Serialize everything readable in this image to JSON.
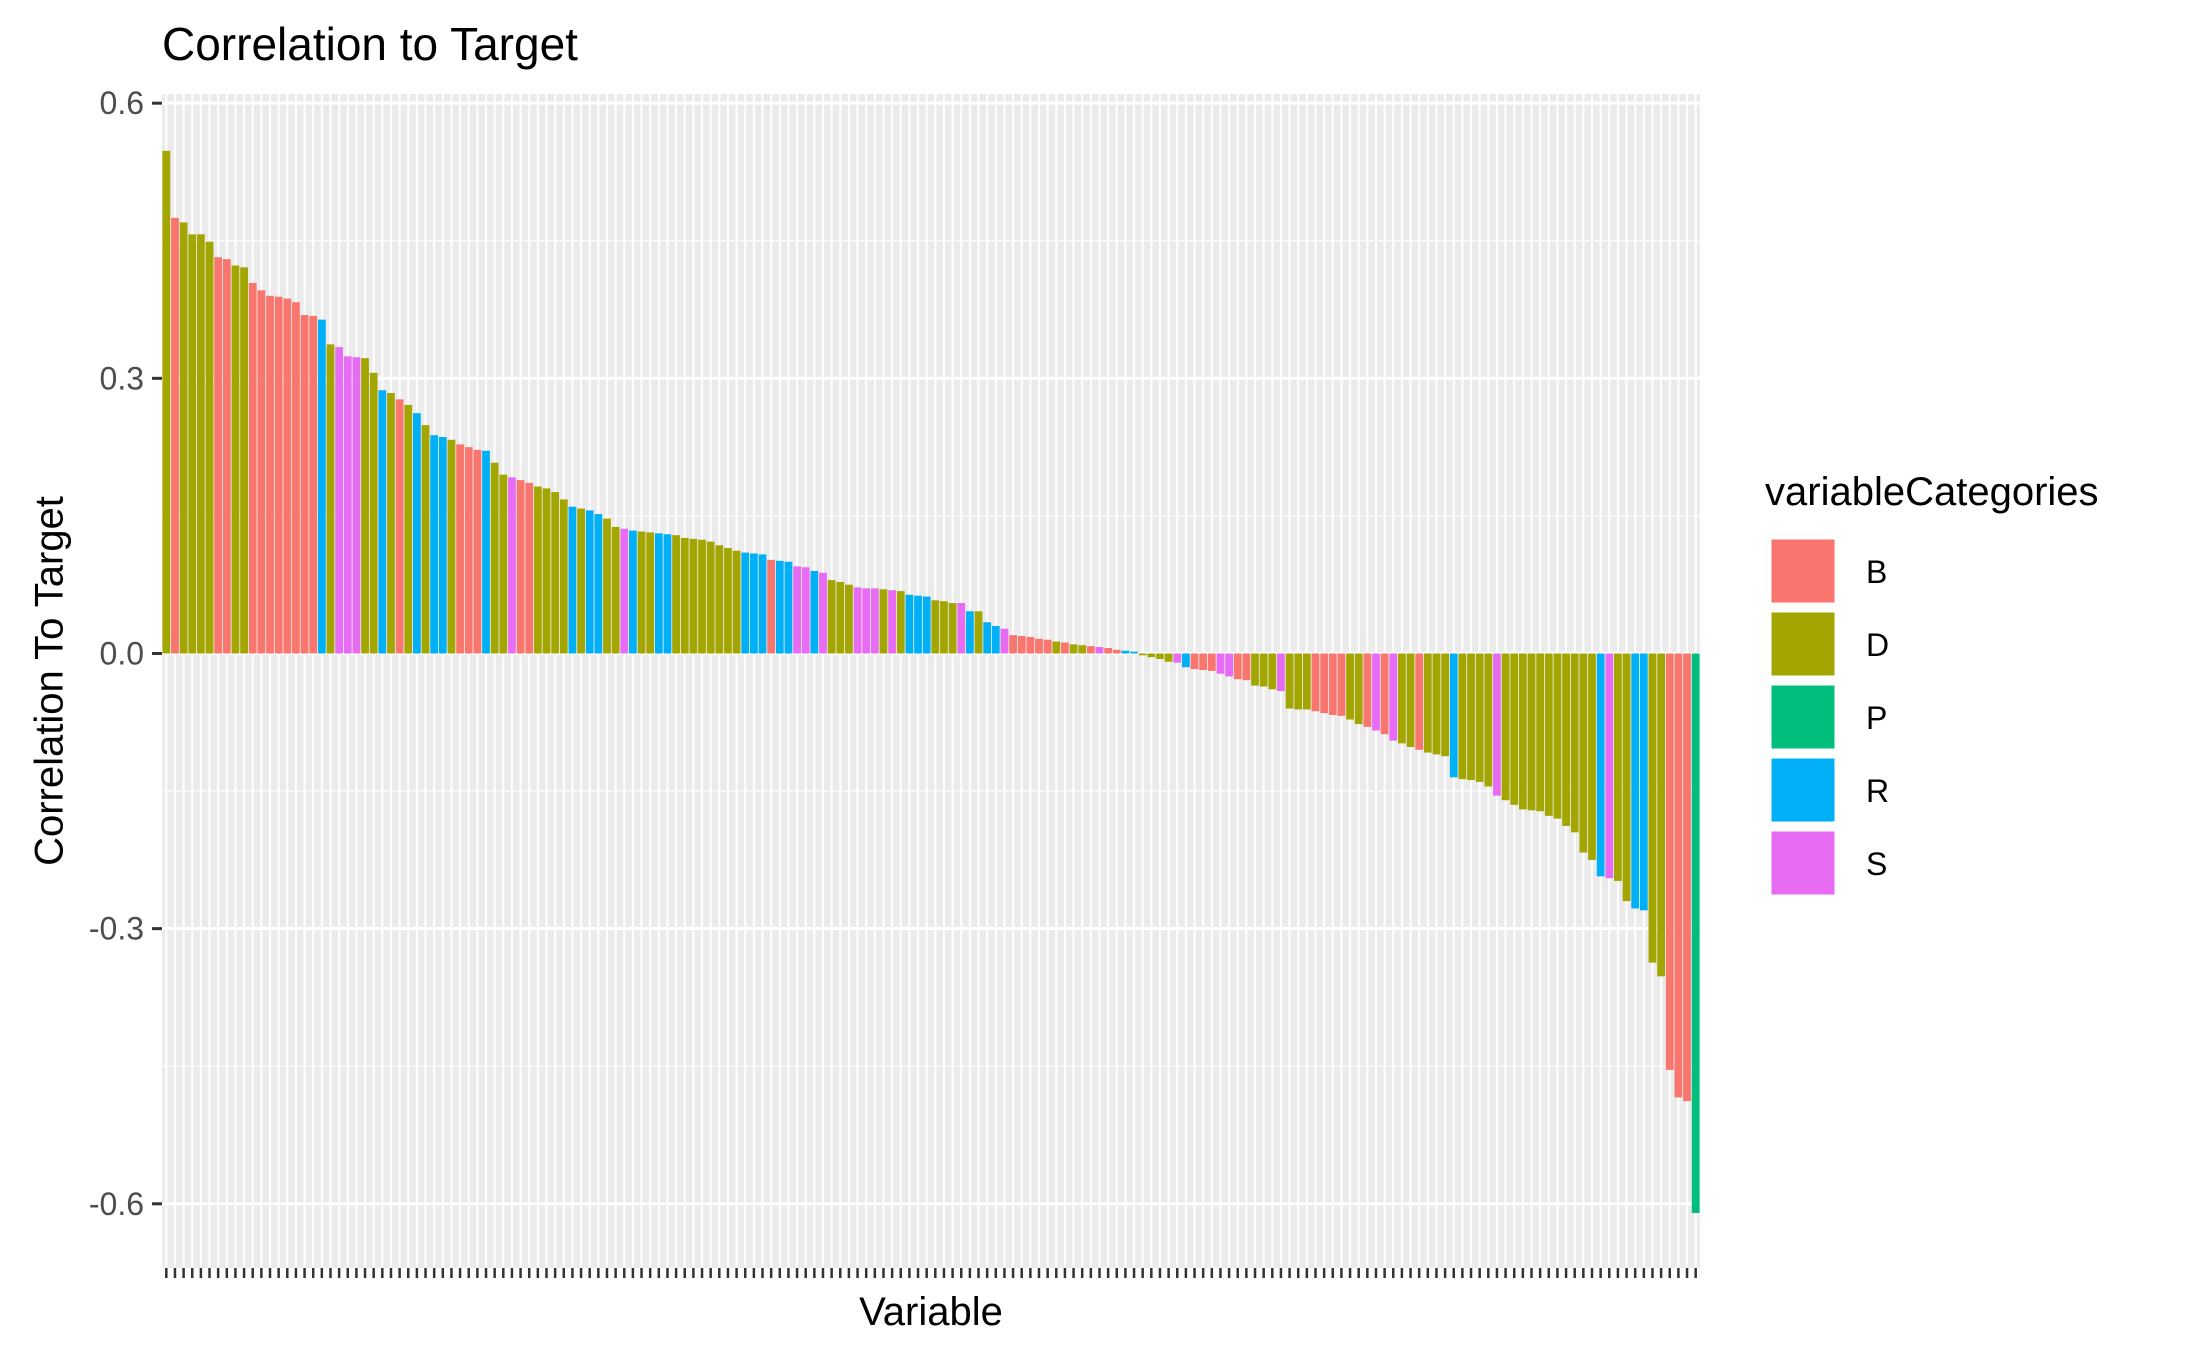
{
  "chart_data": {
    "type": "bar",
    "title": "Correlation to Target",
    "xlabel": "Variable",
    "ylabel": "Correlation To Target",
    "ylim": [
      -0.67,
      0.61
    ],
    "yticks": [
      0.6,
      0.3,
      0.0,
      -0.3,
      -0.6
    ],
    "ytick_labels": [
      "0.6",
      "0.3",
      "0.0",
      "-0.3",
      "-0.6"
    ],
    "grid": true,
    "legend": {
      "title": "variableCategories",
      "position": "right",
      "entries": [
        {
          "key": "B",
          "label": "B",
          "color": "#F8766D"
        },
        {
          "key": "D",
          "label": "D",
          "color": "#A3A500"
        },
        {
          "key": "P",
          "label": "P",
          "color": "#00BF7D"
        },
        {
          "key": "R",
          "label": "R",
          "color": "#00B0F6"
        },
        {
          "key": "S",
          "label": "S",
          "color": "#E76BF3"
        }
      ]
    },
    "bars": [
      {
        "c": "D",
        "v": 0.548
      },
      {
        "c": "B",
        "v": 0.475
      },
      {
        "c": "D",
        "v": 0.47
      },
      {
        "c": "D",
        "v": 0.457
      },
      {
        "c": "D",
        "v": 0.457
      },
      {
        "c": "D",
        "v": 0.449
      },
      {
        "c": "B",
        "v": 0.432
      },
      {
        "c": "B",
        "v": 0.43
      },
      {
        "c": "D",
        "v": 0.423
      },
      {
        "c": "D",
        "v": 0.421
      },
      {
        "c": "B",
        "v": 0.404
      },
      {
        "c": "B",
        "v": 0.396
      },
      {
        "c": "B",
        "v": 0.39
      },
      {
        "c": "B",
        "v": 0.389
      },
      {
        "c": "B",
        "v": 0.387
      },
      {
        "c": "B",
        "v": 0.383
      },
      {
        "c": "B",
        "v": 0.369
      },
      {
        "c": "B",
        "v": 0.368
      },
      {
        "c": "R",
        "v": 0.364
      },
      {
        "c": "D",
        "v": 0.337
      },
      {
        "c": "S",
        "v": 0.334
      },
      {
        "c": "S",
        "v": 0.324
      },
      {
        "c": "S",
        "v": 0.323
      },
      {
        "c": "D",
        "v": 0.322
      },
      {
        "c": "D",
        "v": 0.306
      },
      {
        "c": "R",
        "v": 0.287
      },
      {
        "c": "D",
        "v": 0.284
      },
      {
        "c": "B",
        "v": 0.277
      },
      {
        "c": "D",
        "v": 0.271
      },
      {
        "c": "R",
        "v": 0.262
      },
      {
        "c": "D",
        "v": 0.249
      },
      {
        "c": "R",
        "v": 0.238
      },
      {
        "c": "R",
        "v": 0.236
      },
      {
        "c": "D",
        "v": 0.233
      },
      {
        "c": "B",
        "v": 0.228
      },
      {
        "c": "B",
        "v": 0.225
      },
      {
        "c": "B",
        "v": 0.222
      },
      {
        "c": "R",
        "v": 0.221
      },
      {
        "c": "D",
        "v": 0.208
      },
      {
        "c": "D",
        "v": 0.195
      },
      {
        "c": "S",
        "v": 0.192
      },
      {
        "c": "B",
        "v": 0.189
      },
      {
        "c": "B",
        "v": 0.186
      },
      {
        "c": "D",
        "v": 0.182
      },
      {
        "c": "D",
        "v": 0.18
      },
      {
        "c": "D",
        "v": 0.176
      },
      {
        "c": "D",
        "v": 0.168
      },
      {
        "c": "R",
        "v": 0.16
      },
      {
        "c": "D",
        "v": 0.158
      },
      {
        "c": "R",
        "v": 0.156
      },
      {
        "c": "R",
        "v": 0.152
      },
      {
        "c": "D",
        "v": 0.147
      },
      {
        "c": "D",
        "v": 0.138
      },
      {
        "c": "S",
        "v": 0.136
      },
      {
        "c": "R",
        "v": 0.134
      },
      {
        "c": "D",
        "v": 0.133
      },
      {
        "c": "D",
        "v": 0.132
      },
      {
        "c": "R",
        "v": 0.131
      },
      {
        "c": "R",
        "v": 0.13
      },
      {
        "c": "D",
        "v": 0.129
      },
      {
        "c": "D",
        "v": 0.126
      },
      {
        "c": "D",
        "v": 0.125
      },
      {
        "c": "D",
        "v": 0.124
      },
      {
        "c": "D",
        "v": 0.122
      },
      {
        "c": "D",
        "v": 0.118
      },
      {
        "c": "D",
        "v": 0.115
      },
      {
        "c": "D",
        "v": 0.112
      },
      {
        "c": "R",
        "v": 0.11
      },
      {
        "c": "R",
        "v": 0.109
      },
      {
        "c": "R",
        "v": 0.108
      },
      {
        "c": "B",
        "v": 0.102
      },
      {
        "c": "R",
        "v": 0.101
      },
      {
        "c": "R",
        "v": 0.1
      },
      {
        "c": "S",
        "v": 0.095
      },
      {
        "c": "S",
        "v": 0.094
      },
      {
        "c": "R",
        "v": 0.09
      },
      {
        "c": "S",
        "v": 0.088
      },
      {
        "c": "D",
        "v": 0.08
      },
      {
        "c": "D",
        "v": 0.078
      },
      {
        "c": "D",
        "v": 0.075
      },
      {
        "c": "S",
        "v": 0.072
      },
      {
        "c": "S",
        "v": 0.071
      },
      {
        "c": "S",
        "v": 0.071
      },
      {
        "c": "D",
        "v": 0.07
      },
      {
        "c": "S",
        "v": 0.069
      },
      {
        "c": "D",
        "v": 0.068
      },
      {
        "c": "R",
        "v": 0.064
      },
      {
        "c": "R",
        "v": 0.063
      },
      {
        "c": "R",
        "v": 0.062
      },
      {
        "c": "D",
        "v": 0.058
      },
      {
        "c": "D",
        "v": 0.057
      },
      {
        "c": "D",
        "v": 0.055
      },
      {
        "c": "S",
        "v": 0.055
      },
      {
        "c": "R",
        "v": 0.046
      },
      {
        "c": "D",
        "v": 0.046
      },
      {
        "c": "R",
        "v": 0.034
      },
      {
        "c": "R",
        "v": 0.03
      },
      {
        "c": "S",
        "v": 0.027
      },
      {
        "c": "B",
        "v": 0.02
      },
      {
        "c": "B",
        "v": 0.019
      },
      {
        "c": "B",
        "v": 0.018
      },
      {
        "c": "B",
        "v": 0.016
      },
      {
        "c": "B",
        "v": 0.015
      },
      {
        "c": "D",
        "v": 0.013
      },
      {
        "c": "B",
        "v": 0.012
      },
      {
        "c": "D",
        "v": 0.01
      },
      {
        "c": "D",
        "v": 0.009
      },
      {
        "c": "B",
        "v": 0.008
      },
      {
        "c": "S",
        "v": 0.007
      },
      {
        "c": "B",
        "v": 0.006
      },
      {
        "c": "B",
        "v": 0.004
      },
      {
        "c": "R",
        "v": 0.003
      },
      {
        "c": "R",
        "v": 0.002
      },
      {
        "c": "D",
        "v": -0.002
      },
      {
        "c": "D",
        "v": -0.004
      },
      {
        "c": "D",
        "v": -0.006
      },
      {
        "c": "D",
        "v": -0.009
      },
      {
        "c": "S",
        "v": -0.01
      },
      {
        "c": "R",
        "v": -0.015
      },
      {
        "c": "B",
        "v": -0.017
      },
      {
        "c": "B",
        "v": -0.018
      },
      {
        "c": "B",
        "v": -0.019
      },
      {
        "c": "S",
        "v": -0.022
      },
      {
        "c": "S",
        "v": -0.025
      },
      {
        "c": "B",
        "v": -0.028
      },
      {
        "c": "B",
        "v": -0.029
      },
      {
        "c": "D",
        "v": -0.035
      },
      {
        "c": "D",
        "v": -0.036
      },
      {
        "c": "D",
        "v": -0.039
      },
      {
        "c": "S",
        "v": -0.041
      },
      {
        "c": "D",
        "v": -0.06
      },
      {
        "c": "D",
        "v": -0.061
      },
      {
        "c": "D",
        "v": -0.061
      },
      {
        "c": "B",
        "v": -0.063
      },
      {
        "c": "B",
        "v": -0.065
      },
      {
        "c": "B",
        "v": -0.067
      },
      {
        "c": "B",
        "v": -0.068
      },
      {
        "c": "D",
        "v": -0.072
      },
      {
        "c": "D",
        "v": -0.077
      },
      {
        "c": "B",
        "v": -0.08
      },
      {
        "c": "S",
        "v": -0.084
      },
      {
        "c": "B",
        "v": -0.088
      },
      {
        "c": "S",
        "v": -0.095
      },
      {
        "c": "D",
        "v": -0.098
      },
      {
        "c": "D",
        "v": -0.102
      },
      {
        "c": "B",
        "v": -0.105
      },
      {
        "c": "D",
        "v": -0.108
      },
      {
        "c": "D",
        "v": -0.11
      },
      {
        "c": "D",
        "v": -0.112
      },
      {
        "c": "R",
        "v": -0.135
      },
      {
        "c": "D",
        "v": -0.137
      },
      {
        "c": "D",
        "v": -0.138
      },
      {
        "c": "D",
        "v": -0.14
      },
      {
        "c": "D",
        "v": -0.145
      },
      {
        "c": "S",
        "v": -0.155
      },
      {
        "c": "D",
        "v": -0.16
      },
      {
        "c": "D",
        "v": -0.165
      },
      {
        "c": "D",
        "v": -0.17
      },
      {
        "c": "D",
        "v": -0.171
      },
      {
        "c": "D",
        "v": -0.172
      },
      {
        "c": "D",
        "v": -0.177
      },
      {
        "c": "D",
        "v": -0.18
      },
      {
        "c": "D",
        "v": -0.188
      },
      {
        "c": "D",
        "v": -0.195
      },
      {
        "c": "D",
        "v": -0.217
      },
      {
        "c": "D",
        "v": -0.225
      },
      {
        "c": "R",
        "v": -0.243
      },
      {
        "c": "S",
        "v": -0.245
      },
      {
        "c": "D",
        "v": -0.248
      },
      {
        "c": "D",
        "v": -0.27
      },
      {
        "c": "R",
        "v": -0.278
      },
      {
        "c": "R",
        "v": -0.28
      },
      {
        "c": "D",
        "v": -0.337
      },
      {
        "c": "D",
        "v": -0.352
      },
      {
        "c": "B",
        "v": -0.454
      },
      {
        "c": "B",
        "v": -0.484
      },
      {
        "c": "B",
        "v": -0.488
      },
      {
        "c": "P",
        "v": -0.61
      }
    ]
  }
}
